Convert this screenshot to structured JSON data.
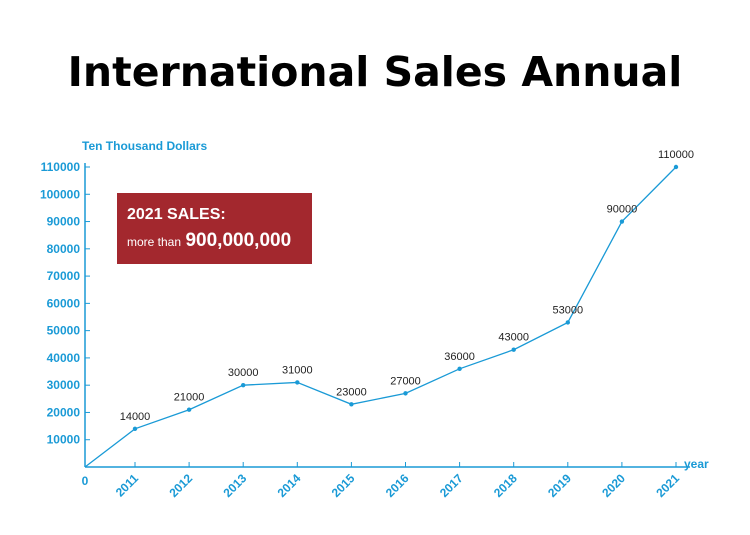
{
  "chart_data": {
    "type": "line",
    "title": "International Sales Annual",
    "ylabel": "Ten Thousand Dollars",
    "xlabel": "year",
    "origin_label": "0",
    "categories": [
      "2011",
      "2012",
      "2013",
      "2014",
      "2015",
      "2016",
      "2017",
      "2018",
      "2019",
      "2020",
      "2021"
    ],
    "values": [
      14000,
      21000,
      30000,
      31000,
      23000,
      27000,
      36000,
      43000,
      53000,
      90000,
      110000
    ],
    "data_labels": [
      "14000",
      "21000",
      "30000",
      "31000",
      "23000",
      "27000",
      "36000",
      "43000",
      "53000",
      "90000",
      "110000"
    ],
    "y_ticks": [
      10000,
      20000,
      30000,
      40000,
      50000,
      60000,
      70000,
      80000,
      90000,
      100000,
      110000
    ],
    "ylim": [
      0,
      110000
    ],
    "start_value": 0,
    "grid": false,
    "colors": {
      "line": "#1a9ad6",
      "axis": "#1a9ad6",
      "text": "#1a9ad6",
      "data_label": "#222222",
      "callout_bg": "#a3282e"
    }
  },
  "callout": {
    "heading": "2021 SALES:",
    "prefix": "more than",
    "value": "900,000,000"
  }
}
